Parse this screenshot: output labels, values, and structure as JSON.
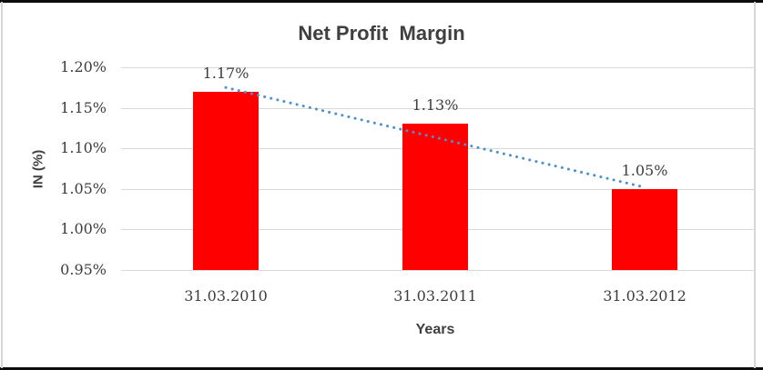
{
  "chart_data": {
    "type": "bar",
    "title": "Net Profit  Margin",
    "xlabel": "Years",
    "ylabel": "IN (%)",
    "categories": [
      "31.03.2010",
      "31.03.2011",
      "31.03.2012"
    ],
    "values": [
      1.17,
      1.13,
      1.05
    ],
    "data_labels": [
      "1.17%",
      "1.13%",
      "1.05%"
    ],
    "ylim": [
      0.95,
      1.2
    ],
    "y_ticks": [
      {
        "value": 1.2,
        "label": "1.20%"
      },
      {
        "value": 1.15,
        "label": "1.15%"
      },
      {
        "value": 1.1,
        "label": "1.10%"
      },
      {
        "value": 1.05,
        "label": "1.05%"
      },
      {
        "value": 1.0,
        "label": "1.00%"
      },
      {
        "value": 0.95,
        "label": "0.95%"
      }
    ],
    "grid": true,
    "legend": "none",
    "colors": {
      "bar": "#ff0000",
      "trendline": "#4f8fcc",
      "gridline": "#d9d9d9",
      "tick_text": "#3d3d3d",
      "title_text": "#3f3f3f"
    },
    "trendline": {
      "type": "linear",
      "style": "dotted",
      "start": {
        "category_index": 0,
        "value": 1.175
      },
      "end": {
        "category_index": 2,
        "value": 1.052
      }
    }
  }
}
